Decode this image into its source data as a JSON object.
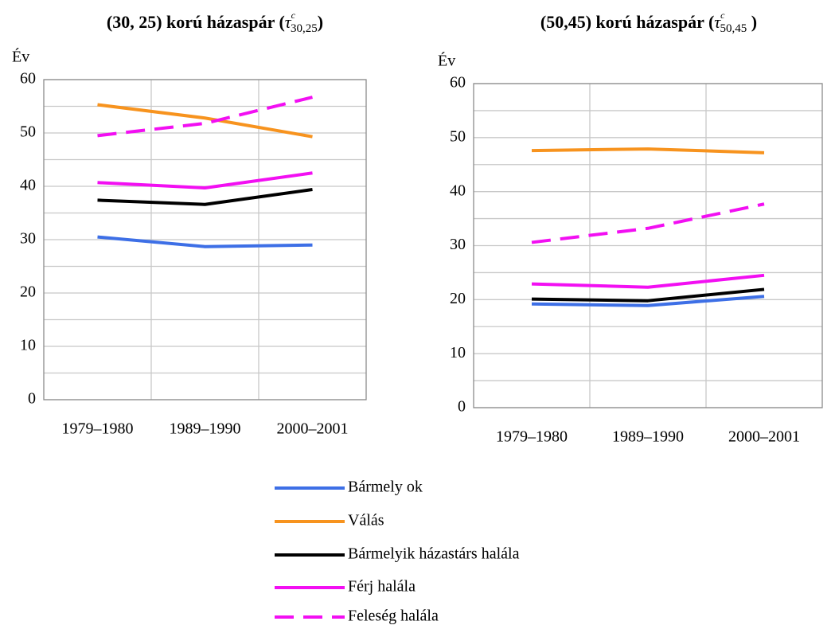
{
  "chart_data": [
    {
      "type": "line",
      "title": {
        "text": "(30, 25) korú házaspár (",
        "symbol": "τ",
        "superscript": "c",
        "subscript": "30,25",
        "close": ")"
      },
      "y_label": "Év",
      "categories": [
        "1979–1980",
        "1989–1990",
        "2000–2001"
      ],
      "ylim": [
        0,
        60
      ],
      "yticks": [
        0,
        10,
        20,
        30,
        40,
        50,
        60
      ],
      "minor_yticks": [
        5,
        15,
        25,
        35,
        45,
        55
      ],
      "grid": true,
      "series": [
        {
          "values": [
            30.5,
            28.7,
            29.0
          ]
        },
        {
          "values": [
            55.3,
            52.8,
            49.3
          ]
        },
        {
          "values": [
            37.4,
            36.6,
            39.4
          ]
        },
        {
          "values": [
            40.7,
            39.7,
            42.5
          ]
        },
        {
          "values": [
            49.5,
            51.8,
            56.7
          ]
        }
      ]
    },
    {
      "type": "line",
      "title": {
        "text": "(50,45) korú házaspár (",
        "symbol": "τ",
        "superscript": "c",
        "subscript": "50,45",
        "close": " )"
      },
      "y_label": "Év",
      "categories": [
        "1979–1980",
        "1989–1990",
        "2000–2001"
      ],
      "ylim": [
        0,
        60
      ],
      "yticks": [
        0,
        10,
        20,
        30,
        40,
        50,
        60
      ],
      "minor_yticks": [
        5,
        15,
        25,
        35,
        45,
        55
      ],
      "grid": true,
      "series": [
        {
          "values": [
            19.2,
            18.9,
            20.6
          ]
        },
        {
          "values": [
            47.6,
            47.9,
            47.2
          ]
        },
        {
          "values": [
            20.1,
            19.8,
            21.9
          ]
        },
        {
          "values": [
            22.9,
            22.3,
            24.5
          ]
        },
        {
          "values": [
            30.6,
            33.2,
            37.7
          ]
        }
      ]
    }
  ],
  "legend": [
    {
      "name": "Bármely ok",
      "color": "#3d6fe6",
      "dashed": false
    },
    {
      "name": "Válás",
      "color": "#f7931e",
      "dashed": false
    },
    {
      "name": "Bármelyik házastárs halála",
      "color": "#000000",
      "dashed": false
    },
    {
      "name": "Férj halála",
      "color": "#f20ff2",
      "dashed": false
    },
    {
      "name": "Feleség halála",
      "color": "#f20ff2",
      "dashed": true
    }
  ]
}
